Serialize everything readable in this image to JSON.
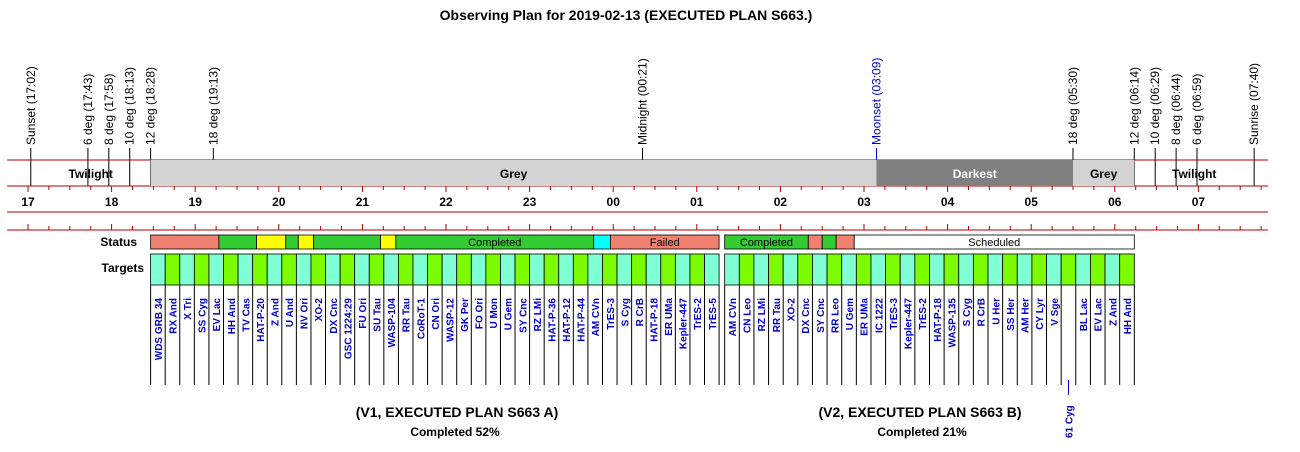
{
  "title": "Observing Plan for 2019-02-13 (EXECUTED PLAN S663.)",
  "chart_data": {
    "type": "timeline",
    "time_range": [
      "16:45",
      "07:50"
    ],
    "events": [
      {
        "label": "Sunset (17:02)",
        "time": "17:02"
      },
      {
        "label": "6 deg (17:43)",
        "time": "17:43"
      },
      {
        "label": "8 deg (17:58)",
        "time": "17:58"
      },
      {
        "label": "10 deg (18:13)",
        "time": "18:13"
      },
      {
        "label": "12 deg (18:28)",
        "time": "18:28"
      },
      {
        "label": "18 deg (19:13)",
        "time": "19:13"
      },
      {
        "label": "Midnight (00:21)",
        "time": "00:21"
      },
      {
        "label": "Moonset (03:09)",
        "time": "03:09",
        "color": "#0000cc"
      },
      {
        "label": "18 deg (05:30)",
        "time": "05:30"
      },
      {
        "label": "12 deg (06:14)",
        "time": "06:14"
      },
      {
        "label": "10 deg (06:29)",
        "time": "06:29"
      },
      {
        "label": "8 deg (06:44)",
        "time": "06:44"
      },
      {
        "label": "6 deg (06:59)",
        "time": "06:59"
      },
      {
        "label": "Sunrise (07:40)",
        "time": "07:40"
      }
    ],
    "sky_bands": [
      {
        "label": "Twilight",
        "start": "17:02",
        "end": "18:28",
        "color": "#ffffff"
      },
      {
        "label": "Grey",
        "start": "18:28",
        "end": "03:09",
        "color": "#d3d3d3"
      },
      {
        "label": "Darkest",
        "start": "03:09",
        "end": "05:30",
        "color": "#808080",
        "text_color": "#ffffff"
      },
      {
        "label": "Grey",
        "start": "05:30",
        "end": "06:14",
        "color": "#d3d3d3"
      },
      {
        "label": "Twilight",
        "start": "06:14",
        "end": "07:40",
        "color": "#ffffff"
      }
    ],
    "hours": [
      "17",
      "18",
      "19",
      "20",
      "21",
      "22",
      "23",
      "00",
      "01",
      "02",
      "03",
      "04",
      "05",
      "06",
      "07"
    ],
    "status_label": "Status",
    "targets_label": "Targets",
    "status": [
      {
        "start": "18:28",
        "end": "19:17",
        "state": "failed",
        "label": ""
      },
      {
        "start": "19:17",
        "end": "19:44",
        "state": "completed",
        "label": ""
      },
      {
        "start": "19:44",
        "end": "20:05",
        "state": "partial",
        "label": ""
      },
      {
        "start": "20:05",
        "end": "20:14",
        "state": "completed",
        "label": ""
      },
      {
        "start": "20:14",
        "end": "20:25",
        "state": "partial",
        "label": ""
      },
      {
        "start": "20:25",
        "end": "21:13",
        "state": "completed",
        "label": ""
      },
      {
        "start": "21:13",
        "end": "21:24",
        "state": "partial",
        "label": ""
      },
      {
        "start": "21:24",
        "end": "23:46",
        "state": "completed",
        "label": "Completed"
      },
      {
        "start": "23:46",
        "end": "23:58",
        "state": "active",
        "label": ""
      },
      {
        "start": "23:58",
        "end": "01:16",
        "state": "failed",
        "label": "Failed"
      },
      {
        "start": "01:20",
        "end": "02:20",
        "state": "completed",
        "label": "Completed"
      },
      {
        "start": "02:20",
        "end": "02:30",
        "state": "failed",
        "label": ""
      },
      {
        "start": "02:30",
        "end": "02:40",
        "state": "completed",
        "label": ""
      },
      {
        "start": "02:40",
        "end": "02:53",
        "state": "failed",
        "label": ""
      },
      {
        "start": "02:53",
        "end": "06:14",
        "state": "scheduled",
        "label": "Scheduled"
      }
    ],
    "status_colors": {
      "completed": "#33cc33",
      "failed": "#f08070",
      "partial": "#ffff00",
      "active": "#00ffff",
      "scheduled": "#ffffff"
    },
    "target_colors": [
      "#7fffd4",
      "#7cfc00"
    ],
    "targets_v1": [
      "WDS GRB 34",
      "RX And",
      "X Tri",
      "SS Cyg",
      "EV Lac",
      "HH And",
      "TV Cas",
      "HAT-P-20",
      "Z And",
      "U And",
      "NV Ori",
      "XO-2",
      "DX Cnc",
      "GSC 1224:29",
      "FU Ori",
      "SU Tau",
      "WASP-104",
      "RR Tau",
      "CoRoT-1",
      "CN Ori",
      "WASP-12",
      "GK Per",
      "FO Ori",
      "U Mon",
      "U Gem",
      "SY Cnc",
      "RZ LMi",
      "HAT-P-36",
      "HAT-P-12",
      "HAT-P-44",
      "AM CVn",
      "TrES-3",
      "S Cyg",
      "R CrB",
      "HAT-P-18",
      "ER UMa",
      "Kepler-447",
      "TrES-2",
      "TrES-5"
    ],
    "targets_v2": [
      "AM CVn",
      "CN Leo",
      "RZ LMi",
      "RR Tau",
      "XO-2",
      "DX Cnc",
      "SY Cnc",
      "RR Leo",
      "U Gem",
      "ER UMa",
      "IC 1222",
      "TrES-3",
      "Kepler-447",
      "TrES-2",
      "HAT-P-18",
      "WASP-135",
      "S Cyg",
      "R CrB",
      "U Her",
      "SS Her",
      "AM Her",
      "CY Lyr",
      "V Sge",
      "61 Cyg",
      "BL Lac",
      "EV Lac",
      "Z And",
      "HH And"
    ],
    "plans": [
      {
        "title": "(V1, EXECUTED PLAN S663 A)",
        "completed": "Completed 52%"
      },
      {
        "title": "(V2, EXECUTED PLAN S663 B)",
        "completed": "Completed 21%"
      }
    ]
  }
}
